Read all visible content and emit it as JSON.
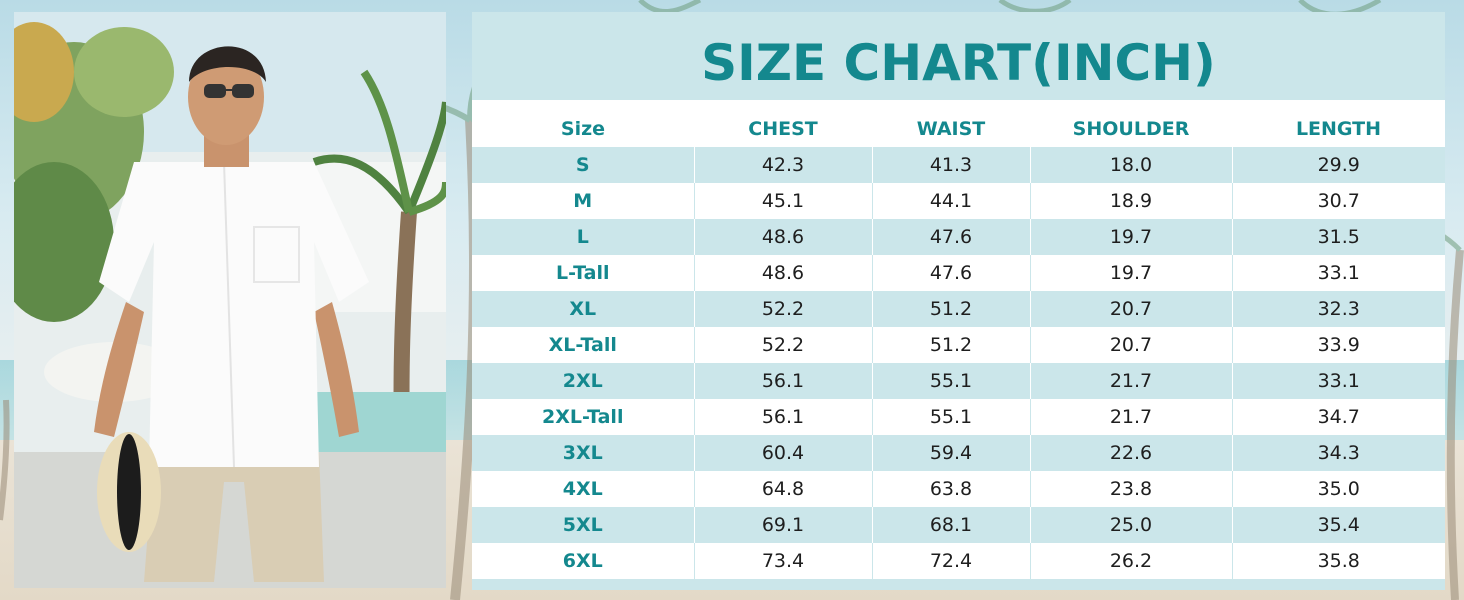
{
  "chart": {
    "title": "SIZE CHART(INCH)",
    "headers": [
      "Size",
      "CHEST",
      "WAIST",
      "SHOULDER",
      "LENGTH"
    ],
    "rows": [
      [
        "S",
        "42.3",
        "41.3",
        "18.0",
        "29.9"
      ],
      [
        "M",
        "45.1",
        "44.1",
        "18.9",
        "30.7"
      ],
      [
        "L",
        "48.6",
        "47.6",
        "19.7",
        "31.5"
      ],
      [
        "L-Tall",
        "48.6",
        "47.6",
        "19.7",
        "33.1"
      ],
      [
        "XL",
        "52.2",
        "51.2",
        "20.7",
        "32.3"
      ],
      [
        "XL-Tall",
        "52.2",
        "51.2",
        "20.7",
        "33.9"
      ],
      [
        "2XL",
        "56.1",
        "55.1",
        "21.7",
        "33.1"
      ],
      [
        "2XL-Tall",
        "56.1",
        "55.1",
        "21.7",
        "34.7"
      ],
      [
        "3XL",
        "60.4",
        "59.4",
        "22.6",
        "34.3"
      ],
      [
        "4XL",
        "64.8",
        "63.8",
        "23.8",
        "35.0"
      ],
      [
        "5XL",
        "69.1",
        "68.1",
        "25.0",
        "35.4"
      ],
      [
        "6XL",
        "73.4",
        "72.4",
        "26.2",
        "35.8"
      ]
    ]
  },
  "colors": {
    "accent": "#14888e",
    "row_tint": "#cbe6ea",
    "row_white": "#ffffff",
    "text": "#1e1e1e"
  },
  "photo": {
    "subject": "man-in-white-short-sleeve-shirt-holding-straw-hat"
  }
}
